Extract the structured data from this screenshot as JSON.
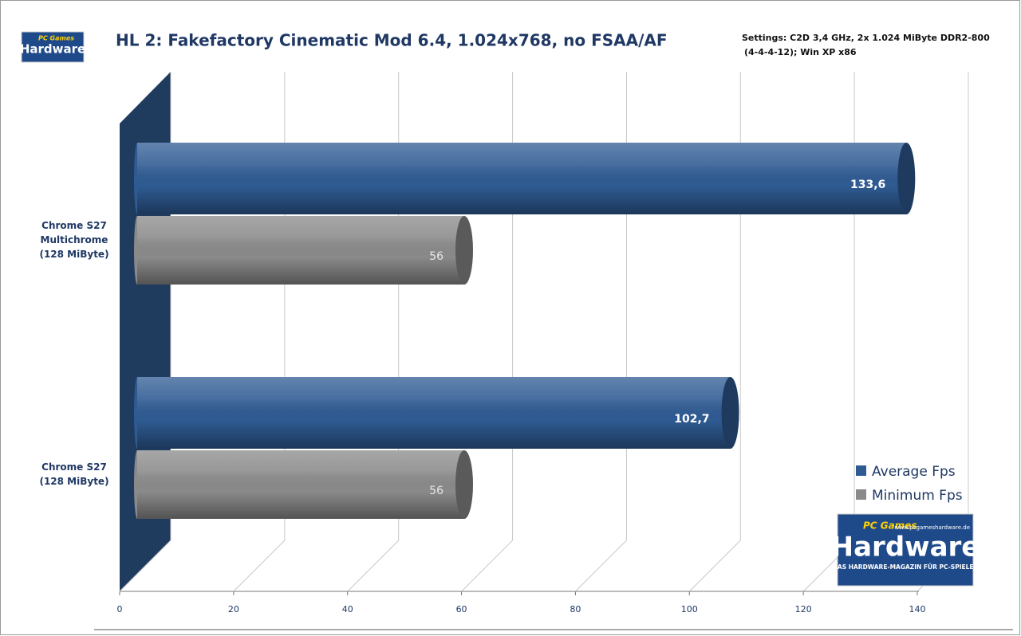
{
  "chart_data": {
    "type": "bar3d",
    "title": "HL 2: Fakefactory Cinematic Mod 6.4, 1.024x768, no FSAA/AF",
    "subtitle": [
      "Settings: C2D 3,4 GHz,  2x 1.024 MiByte DDR2-800",
      "(4-4-4-12); Win XP x86"
    ],
    "categories": [
      "Chrome S27 Multichrome (128 MiByte)",
      "Chrome S27 (128 MiByte)"
    ],
    "series": [
      {
        "name": "Average Fps",
        "color": "#2f5b93",
        "values": [
          133.6,
          102.7
        ],
        "value_labels": [
          "133,6",
          "102,7"
        ]
      },
      {
        "name": "Minimum Fps",
        "color": "#8a8a8a",
        "values": [
          56,
          56
        ]
      }
    ],
    "xlim": [
      0,
      140
    ],
    "xticks": [
      0,
      20,
      40,
      60,
      80,
      100,
      120,
      140
    ],
    "grid": true,
    "legend": "lower right"
  },
  "branding": {
    "brand": "PC Games",
    "name": "Hardware",
    "url": "www.pcgameshardware.de",
    "tagline": "DAS HARDWARE-MAGAZIN FÜR PC-SPIELER"
  }
}
